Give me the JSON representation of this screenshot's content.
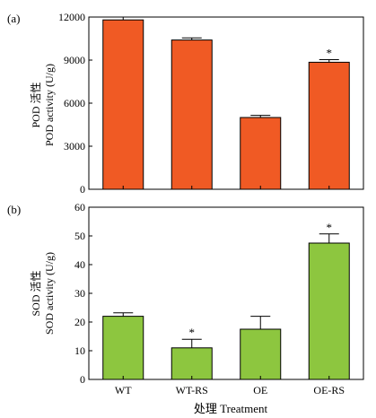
{
  "chart_data": [
    {
      "panel_label": "(a)",
      "type": "bar",
      "categories": [
        "WT",
        "WT-RS",
        "OE",
        "OE-RS"
      ],
      "values": [
        11800,
        10400,
        5000,
        8850
      ],
      "errors": [
        200,
        150,
        150,
        180
      ],
      "annotations": [
        "",
        "",
        "",
        "*"
      ],
      "ylabel_line1": "POD 活性",
      "ylabel_line2": "POD activity (U/g)",
      "ylim": [
        0,
        12000
      ],
      "yticks": [
        0,
        3000,
        6000,
        9000,
        12000
      ],
      "bar_color": "#f05a24",
      "grid": false
    },
    {
      "panel_label": "(b)",
      "type": "bar",
      "categories": [
        "WT",
        "WT-RS",
        "OE",
        "OE-RS"
      ],
      "values": [
        22,
        11,
        17.5,
        47.5
      ],
      "errors": [
        1.2,
        3,
        4.5,
        3.2
      ],
      "annotations": [
        "",
        "*",
        "",
        "*"
      ],
      "ylabel_line1": "SOD 活性",
      "ylabel_line2": "SOD activity (U/g)",
      "ylim": [
        0,
        60
      ],
      "yticks": [
        0,
        10,
        20,
        30,
        40,
        50,
        60
      ],
      "bar_color": "#8dc63f",
      "grid": false
    }
  ],
  "xlabel": "处理 Treatment"
}
